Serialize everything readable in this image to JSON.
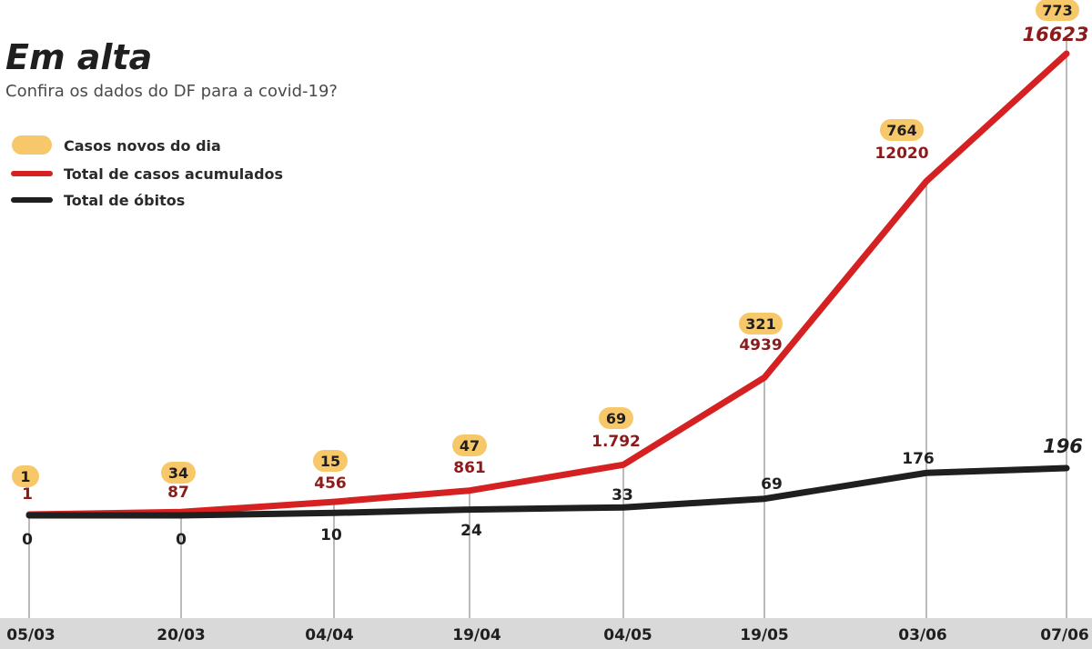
{
  "title": "Em alta",
  "subtitle": "Confira os dados do DF para a covid-19?",
  "legend": {
    "new_cases": "Casos novos do dia",
    "total_cases": "Total de casos acumulados",
    "deaths": "Total de óbitos"
  },
  "colors": {
    "new_cases_pill": "#f7c86a",
    "total_cases_line": "#d52121",
    "total_cases_text": "#8c1b1b",
    "deaths_line": "#1f1f1f",
    "axis_band": "#d9d9d9",
    "guide_line": "#777777"
  },
  "chart_data": {
    "type": "line",
    "categories": [
      "05/03",
      "20/03",
      "04/04",
      "19/04",
      "04/05",
      "19/05",
      "03/06",
      "07/06"
    ],
    "series": [
      {
        "name": "Casos novos do dia",
        "values": [
          1,
          34,
          15,
          47,
          69,
          321,
          764,
          773
        ]
      },
      {
        "name": "Total de casos acumulados",
        "values": [
          1,
          87,
          456,
          861,
          1792,
          4939,
          12020,
          16623
        ]
      },
      {
        "name": "Total de óbitos",
        "values": [
          0,
          0,
          10,
          24,
          33,
          69,
          176,
          196
        ]
      }
    ],
    "labels": {
      "new_cases": [
        "1",
        "34",
        "15",
        "47",
        "69",
        "321",
        "764",
        "773"
      ],
      "total_cases": [
        "1",
        "87",
        "456",
        "861",
        "1.792",
        "4939",
        "12020",
        "16623"
      ],
      "deaths": [
        "0",
        "0",
        "10",
        "24",
        "33",
        "69",
        "176",
        "196"
      ]
    },
    "title": "Em alta",
    "xlabel": "",
    "ylabel": "",
    "ylim": [
      0,
      17000
    ],
    "grid": false,
    "legend_position": "top-left"
  }
}
